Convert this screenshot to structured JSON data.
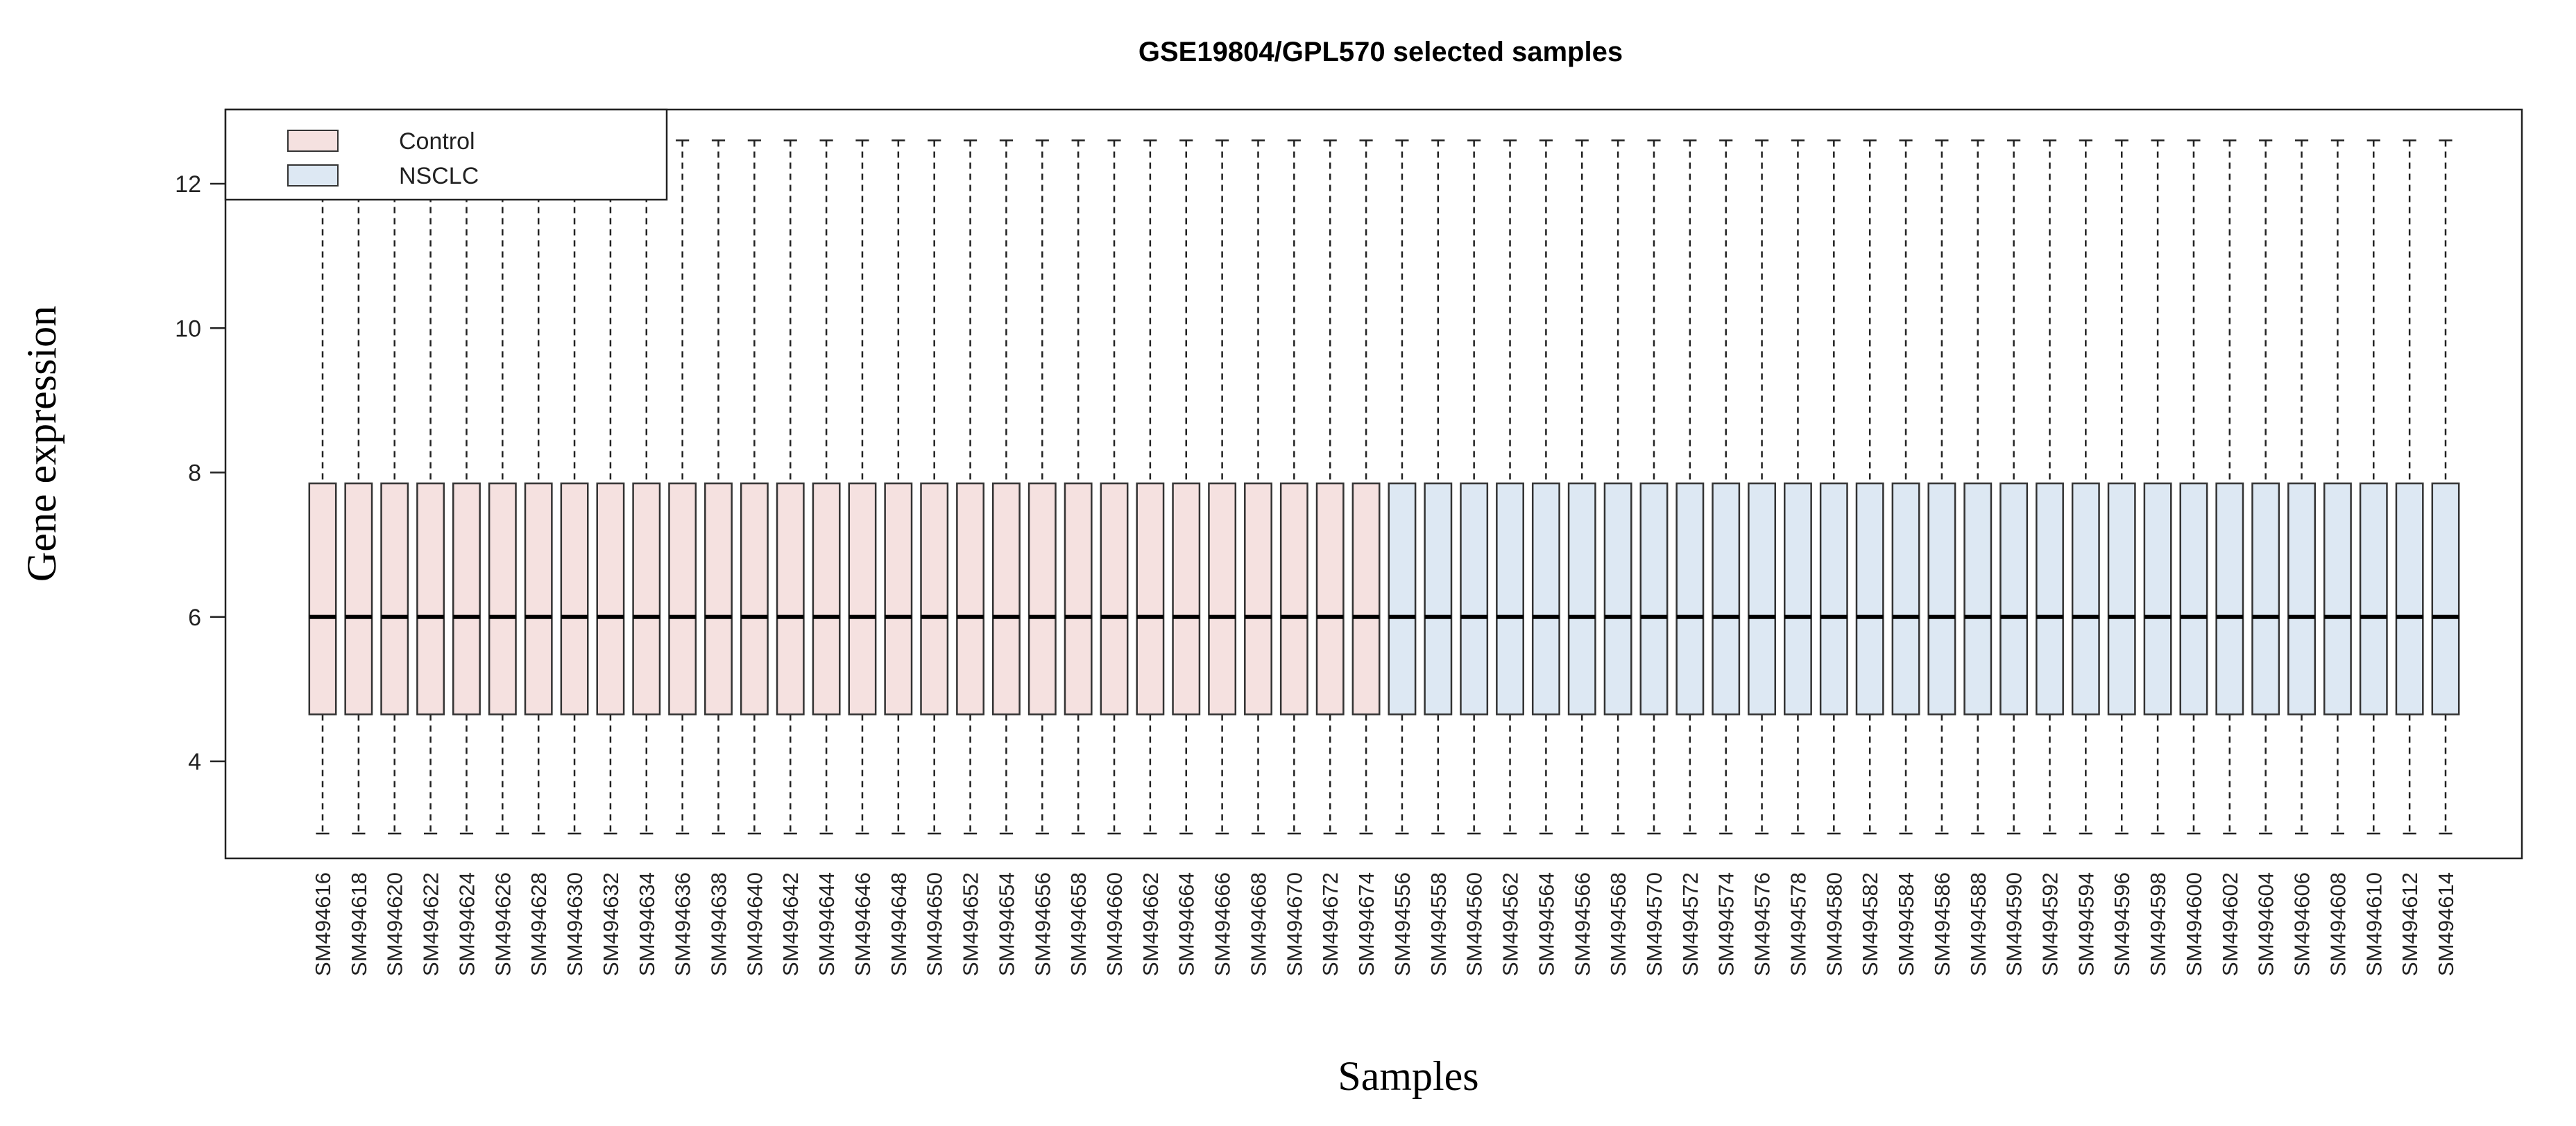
{
  "chart_data": {
    "type": "boxplot",
    "title": "GSE19804/GPL570 selected samples",
    "xlabel": "Samples",
    "ylabel": "Gene expression",
    "ylim": [
      2.5,
      13.2
    ],
    "yticks": [
      4,
      6,
      8,
      10,
      12
    ],
    "grid": false,
    "legend_position": "top-left",
    "legend": [
      {
        "label": "Control",
        "color": "#f5e1e0"
      },
      {
        "label": "NSCLC",
        "color": "#dde8f3"
      }
    ],
    "box_stats": {
      "min": 3.0,
      "q1": 4.65,
      "median": 6.0,
      "q3": 7.85,
      "max": 12.6
    },
    "categories": [
      "SM494616",
      "SM494618",
      "SM494620",
      "SM494622",
      "SM494624",
      "SM494626",
      "SM494628",
      "SM494630",
      "SM494632",
      "SM494634",
      "SM494636",
      "SM494638",
      "SM494640",
      "SM494642",
      "SM494644",
      "SM494646",
      "SM494648",
      "SM494650",
      "SM494652",
      "SM494654",
      "SM494656",
      "SM494658",
      "SM494660",
      "SM494662",
      "SM494664",
      "SM494666",
      "SM494668",
      "SM494670",
      "SM494672",
      "SM494674",
      "SM494556",
      "SM494558",
      "SM494560",
      "SM494562",
      "SM494564",
      "SM494566",
      "SM494568",
      "SM494570",
      "SM494572",
      "SM494574",
      "SM494576",
      "SM494578",
      "SM494580",
      "SM494582",
      "SM494584",
      "SM494586",
      "SM494588",
      "SM494590",
      "SM494592",
      "SM494594",
      "SM494596",
      "SM494598",
      "SM494600",
      "SM494602",
      "SM494604",
      "SM494606",
      "SM494608",
      "SM494610",
      "SM494612",
      "SM494614"
    ],
    "groups": [
      "Control",
      "Control",
      "Control",
      "Control",
      "Control",
      "Control",
      "Control",
      "Control",
      "Control",
      "Control",
      "Control",
      "Control",
      "Control",
      "Control",
      "Control",
      "Control",
      "Control",
      "Control",
      "Control",
      "Control",
      "Control",
      "Control",
      "Control",
      "Control",
      "Control",
      "Control",
      "Control",
      "Control",
      "Control",
      "Control",
      "NSCLC",
      "NSCLC",
      "NSCLC",
      "NSCLC",
      "NSCLC",
      "NSCLC",
      "NSCLC",
      "NSCLC",
      "NSCLC",
      "NSCLC",
      "NSCLC",
      "NSCLC",
      "NSCLC",
      "NSCLC",
      "NSCLC",
      "NSCLC",
      "NSCLC",
      "NSCLC",
      "NSCLC",
      "NSCLC",
      "NSCLC",
      "NSCLC",
      "NSCLC",
      "NSCLC",
      "NSCLC",
      "NSCLC",
      "NSCLC",
      "NSCLC",
      "NSCLC",
      "NSCLC"
    ]
  }
}
